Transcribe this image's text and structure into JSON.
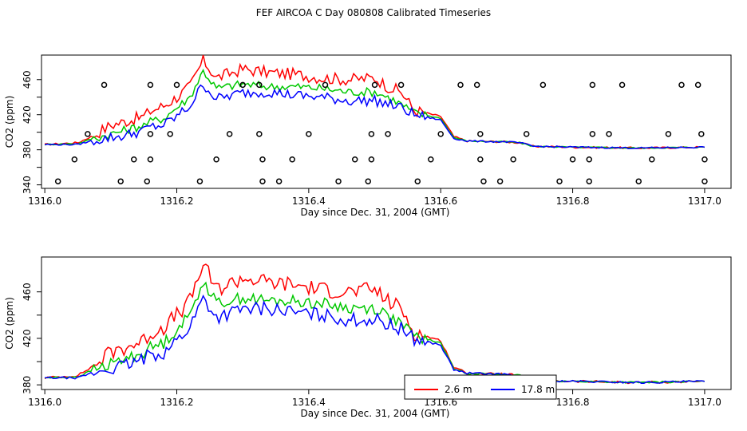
{
  "title": "FEF AIRCOA C  Day 080808  Calibrated Timeseries",
  "chart_data": [
    {
      "type": "line",
      "xlabel": "Day since Dec. 31, 2004 (GMT)",
      "ylabel": "CO2 (ppm)",
      "xlim": [
        1315.995,
        1317.04
      ],
      "ylim": [
        336,
        488
      ],
      "x_ticks": [
        "1316.0",
        "1316.2",
        "1316.4",
        "1316.6",
        "1316.8",
        "1317.0"
      ],
      "y_ticks": [
        "340",
        "380",
        "420",
        "460"
      ],
      "y_tick_values": [
        340,
        360,
        380,
        400,
        420,
        440,
        460
      ],
      "y_tick_label_values": [
        340,
        380,
        420,
        460
      ],
      "colors": {
        "red": "#ff0000",
        "green": "#00c800",
        "blue": "#0000ff",
        "points": "#000000"
      },
      "series": [
        {
          "color": "red",
          "points": [
            [
              1316.0,
              386
            ],
            [
              1316.05,
              388
            ],
            [
              1316.07,
              395
            ],
            [
              1316.1,
              408
            ],
            [
              1316.12,
              412
            ],
            [
              1316.15,
              418
            ],
            [
              1316.16,
              424
            ],
            [
              1316.18,
              430
            ],
            [
              1316.2,
              440
            ],
            [
              1316.22,
              452
            ],
            [
              1316.24,
              482
            ],
            [
              1316.26,
              462
            ],
            [
              1316.3,
              472
            ],
            [
              1316.34,
              468
            ],
            [
              1316.38,
              466
            ],
            [
              1316.42,
              462
            ],
            [
              1316.46,
              460
            ],
            [
              1316.5,
              462
            ],
            [
              1316.52,
              452
            ],
            [
              1316.54,
              446
            ],
            [
              1316.56,
              425
            ],
            [
              1316.6,
              418
            ],
            [
              1316.62,
              395
            ],
            [
              1316.64,
              390
            ],
            [
              1316.7,
              389
            ],
            [
              1316.72,
              388
            ],
            [
              1316.74,
              384
            ],
            [
              1316.8,
              383
            ],
            [
              1316.9,
              382
            ],
            [
              1317.0,
              383
            ]
          ]
        },
        {
          "color": "green",
          "points": [
            [
              1316.0,
              386
            ],
            [
              1316.05,
              387
            ],
            [
              1316.07,
              392
            ],
            [
              1316.1,
              398
            ],
            [
              1316.12,
              402
            ],
            [
              1316.15,
              408
            ],
            [
              1316.16,
              412
            ],
            [
              1316.18,
              416
            ],
            [
              1316.2,
              428
            ],
            [
              1316.22,
              440
            ],
            [
              1316.24,
              470
            ],
            [
              1316.26,
              450
            ],
            [
              1316.3,
              455
            ],
            [
              1316.34,
              452
            ],
            [
              1316.38,
              452
            ],
            [
              1316.42,
              450
            ],
            [
              1316.46,
              446
            ],
            [
              1316.5,
              446
            ],
            [
              1316.52,
              440
            ],
            [
              1316.54,
              432
            ],
            [
              1316.56,
              422
            ],
            [
              1316.6,
              416
            ],
            [
              1316.62,
              394
            ],
            [
              1316.64,
              390
            ],
            [
              1316.7,
              389
            ],
            [
              1316.72,
              388
            ],
            [
              1316.74,
              384
            ],
            [
              1316.8,
              383
            ],
            [
              1316.9,
              382
            ],
            [
              1317.0,
              383
            ]
          ]
        },
        {
          "color": "blue",
          "points": [
            [
              1316.0,
              386
            ],
            [
              1316.05,
              386
            ],
            [
              1316.07,
              390
            ],
            [
              1316.1,
              394
            ],
            [
              1316.12,
              396
            ],
            [
              1316.15,
              402
            ],
            [
              1316.16,
              406
            ],
            [
              1316.18,
              408
            ],
            [
              1316.2,
              418
            ],
            [
              1316.22,
              430
            ],
            [
              1316.24,
              455
            ],
            [
              1316.26,
              438
            ],
            [
              1316.3,
              445
            ],
            [
              1316.34,
              446
            ],
            [
              1316.38,
              442
            ],
            [
              1316.42,
              440
            ],
            [
              1316.46,
              436
            ],
            [
              1316.5,
              436
            ],
            [
              1316.52,
              432
            ],
            [
              1316.54,
              428
            ],
            [
              1316.56,
              420
            ],
            [
              1316.6,
              414
            ],
            [
              1316.62,
              393
            ],
            [
              1316.64,
              390
            ],
            [
              1316.7,
              389
            ],
            [
              1316.72,
              388
            ],
            [
              1316.74,
              384
            ],
            [
              1316.8,
              383
            ],
            [
              1316.9,
              382
            ],
            [
              1317.0,
              383
            ]
          ]
        }
      ],
      "scatter_points": [
        [
          1316.02,
          344
        ],
        [
          1316.045,
          369
        ],
        [
          1316.065,
          398
        ],
        [
          1316.09,
          454
        ],
        [
          1316.115,
          344
        ],
        [
          1316.135,
          369
        ],
        [
          1316.16,
          369
        ],
        [
          1316.16,
          398
        ],
        [
          1316.16,
          454
        ],
        [
          1316.155,
          344
        ],
        [
          1316.19,
          398
        ],
        [
          1316.2,
          454
        ],
        [
          1316.235,
          344
        ],
        [
          1316.26,
          369
        ],
        [
          1316.28,
          398
        ],
        [
          1316.3,
          454
        ],
        [
          1316.325,
          454
        ],
        [
          1316.325,
          398
        ],
        [
          1316.33,
          369
        ],
        [
          1316.33,
          344
        ],
        [
          1316.355,
          344
        ],
        [
          1316.375,
          369
        ],
        [
          1316.4,
          398
        ],
        [
          1316.425,
          454
        ],
        [
          1316.445,
          344
        ],
        [
          1316.47,
          369
        ],
        [
          1316.49,
          344
        ],
        [
          1316.495,
          369
        ],
        [
          1316.495,
          398
        ],
        [
          1316.5,
          454
        ],
        [
          1316.52,
          398
        ],
        [
          1316.54,
          454
        ],
        [
          1316.565,
          344
        ],
        [
          1316.585,
          369
        ],
        [
          1316.6,
          398
        ],
        [
          1316.63,
          454
        ],
        [
          1316.655,
          454
        ],
        [
          1316.66,
          398
        ],
        [
          1316.66,
          369
        ],
        [
          1316.665,
          344
        ],
        [
          1316.69,
          344
        ],
        [
          1316.71,
          369
        ],
        [
          1316.73,
          398
        ],
        [
          1316.755,
          454
        ],
        [
          1316.78,
          344
        ],
        [
          1316.8,
          369
        ],
        [
          1316.825,
          344
        ],
        [
          1316.825,
          369
        ],
        [
          1316.83,
          398
        ],
        [
          1316.83,
          454
        ],
        [
          1316.855,
          398
        ],
        [
          1316.875,
          454
        ],
        [
          1316.9,
          344
        ],
        [
          1316.92,
          369
        ],
        [
          1316.945,
          398
        ],
        [
          1316.965,
          454
        ],
        [
          1316.99,
          454
        ],
        [
          1316.995,
          398
        ],
        [
          1317.0,
          369
        ],
        [
          1317.0,
          344
        ]
      ]
    },
    {
      "type": "line",
      "xlabel": "Day since Dec. 31, 2004 (GMT)",
      "ylabel": "CO2 (ppm)",
      "xlim": [
        1315.995,
        1317.04
      ],
      "ylim": [
        376,
        490
      ],
      "x_ticks": [
        "1316.0",
        "1316.2",
        "1316.4",
        "1316.6",
        "1316.8",
        "1317.0"
      ],
      "y_ticks": [
        "380",
        "420",
        "460"
      ],
      "y_tick_values": [
        380,
        400,
        420,
        440,
        460
      ],
      "y_tick_label_values": [
        380,
        420,
        460
      ],
      "legend": {
        "placement": "bottom-center",
        "entries": [
          {
            "label": "2.6 m",
            "color": "red"
          },
          {
            "label": "17.8 m",
            "color": "blue"
          }
        ]
      },
      "series": [
        {
          "color": "red",
          "label": "2.6 m",
          "points": [
            [
              1316.0,
              386
            ],
            [
              1316.05,
              388
            ],
            [
              1316.07,
              395
            ],
            [
              1316.1,
              408
            ],
            [
              1316.12,
              412
            ],
            [
              1316.15,
              418
            ],
            [
              1316.16,
              424
            ],
            [
              1316.18,
              430
            ],
            [
              1316.2,
              440
            ],
            [
              1316.22,
              452
            ],
            [
              1316.24,
              484
            ],
            [
              1316.26,
              462
            ],
            [
              1316.3,
              472
            ],
            [
              1316.34,
              468
            ],
            [
              1316.38,
              466
            ],
            [
              1316.42,
              462
            ],
            [
              1316.46,
              460
            ],
            [
              1316.5,
              462
            ],
            [
              1316.52,
              452
            ],
            [
              1316.54,
              446
            ],
            [
              1316.56,
              425
            ],
            [
              1316.6,
              418
            ],
            [
              1316.62,
              395
            ],
            [
              1316.64,
              390
            ],
            [
              1316.7,
              389
            ],
            [
              1316.72,
              388
            ],
            [
              1316.74,
              384
            ],
            [
              1316.8,
              383
            ],
            [
              1316.9,
              382
            ],
            [
              1317.0,
              383
            ]
          ]
        },
        {
          "color": "green",
          "points": [
            [
              1316.0,
              386
            ],
            [
              1316.05,
              387
            ],
            [
              1316.07,
              392
            ],
            [
              1316.1,
              398
            ],
            [
              1316.12,
              402
            ],
            [
              1316.15,
              408
            ],
            [
              1316.16,
              412
            ],
            [
              1316.18,
              416
            ],
            [
              1316.2,
              428
            ],
            [
              1316.22,
              440
            ],
            [
              1316.24,
              470
            ],
            [
              1316.26,
              450
            ],
            [
              1316.3,
              455
            ],
            [
              1316.34,
              452
            ],
            [
              1316.38,
              452
            ],
            [
              1316.42,
              450
            ],
            [
              1316.46,
              446
            ],
            [
              1316.5,
              446
            ],
            [
              1316.52,
              440
            ],
            [
              1316.54,
              432
            ],
            [
              1316.56,
              422
            ],
            [
              1316.6,
              416
            ],
            [
              1316.62,
              394
            ],
            [
              1316.64,
              390
            ],
            [
              1316.7,
              389
            ],
            [
              1316.72,
              388
            ],
            [
              1316.74,
              384
            ],
            [
              1316.8,
              383
            ],
            [
              1316.9,
              382
            ],
            [
              1317.0,
              383
            ]
          ]
        },
        {
          "color": "blue",
          "label": "17.8 m",
          "points": [
            [
              1316.0,
              386
            ],
            [
              1316.05,
              386
            ],
            [
              1316.07,
              390
            ],
            [
              1316.1,
              394
            ],
            [
              1316.12,
              396
            ],
            [
              1316.15,
              402
            ],
            [
              1316.16,
              406
            ],
            [
              1316.18,
              408
            ],
            [
              1316.2,
              418
            ],
            [
              1316.22,
              430
            ],
            [
              1316.24,
              455
            ],
            [
              1316.26,
              438
            ],
            [
              1316.3,
              445
            ],
            [
              1316.34,
              446
            ],
            [
              1316.38,
              442
            ],
            [
              1316.42,
              440
            ],
            [
              1316.46,
              436
            ],
            [
              1316.5,
              436
            ],
            [
              1316.52,
              432
            ],
            [
              1316.54,
              428
            ],
            [
              1316.56,
              420
            ],
            [
              1316.6,
              414
            ],
            [
              1316.62,
              393
            ],
            [
              1316.64,
              390
            ],
            [
              1316.7,
              389
            ],
            [
              1316.72,
              388
            ],
            [
              1316.74,
              384
            ],
            [
              1316.8,
              383
            ],
            [
              1316.9,
              382
            ],
            [
              1317.0,
              383
            ]
          ]
        }
      ]
    }
  ]
}
